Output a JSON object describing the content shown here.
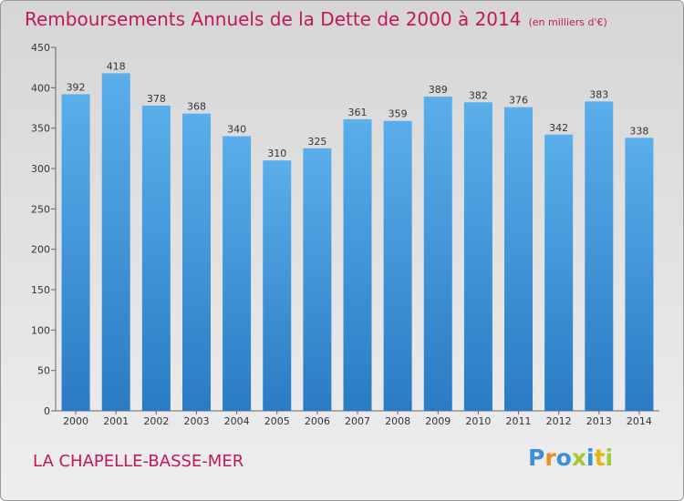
{
  "title": "Remboursements Annuels de la Dette de 2000 à 2014",
  "unit": "(en milliers d'€)",
  "commune": "LA CHAPELLE-BASSE-MER",
  "logo": {
    "text": "Proxiti",
    "colors": [
      "#3a8fd8",
      "#f08c1e",
      "#3a8fd8",
      "#a2c738",
      "#3a8fd8",
      "#e8b40e",
      "#a2c738"
    ]
  },
  "colors": {
    "bar_top": "#5aaeea",
    "bar_bottom": "#2a7bc4",
    "accent": "#c2185b"
  },
  "chart_data": {
    "type": "bar",
    "title": "Remboursements Annuels de la Dette de 2000 à 2014",
    "categories": [
      "2000",
      "2001",
      "2002",
      "2003",
      "2004",
      "2005",
      "2006",
      "2007",
      "2008",
      "2009",
      "2010",
      "2011",
      "2012",
      "2013",
      "2014"
    ],
    "values": [
      392,
      418,
      378,
      368,
      340,
      310,
      325,
      361,
      359,
      389,
      382,
      376,
      342,
      383,
      338
    ],
    "yticks": [
      0,
      50,
      100,
      150,
      200,
      250,
      300,
      350,
      400,
      450
    ],
    "ylim": [
      0,
      450
    ],
    "grid": false,
    "legend": "none"
  }
}
